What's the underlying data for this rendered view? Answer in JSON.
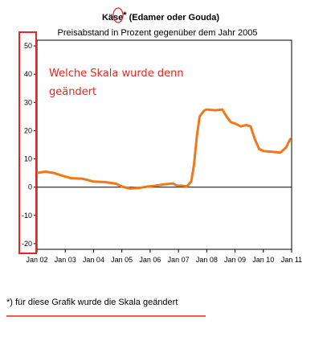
{
  "chart_data": {
    "type": "line",
    "title": "Käse (Edamer oder Gouda)",
    "title_marker": "*",
    "subtitle": "Preisabstand in Prozent gegenüber dem Jahr 2005",
    "x_ticks": [
      "Jan 02",
      "Jan 03",
      "Jan 04",
      "Jan 05",
      "Jan 06",
      "Jan 07",
      "Jan 08",
      "Jan 09",
      "Jan 10",
      "Jan 11"
    ],
    "xlim": [
      2002.0,
      2011.0
    ],
    "ylim": [
      -22,
      52
    ],
    "y_ticks": [
      -20,
      -10,
      0,
      10,
      20,
      30,
      40,
      50
    ],
    "grid": false,
    "series": [
      {
        "color": "#f07819",
        "points": [
          [
            2002.0,
            5.0
          ],
          [
            2002.3,
            5.5
          ],
          [
            2002.6,
            5.0
          ],
          [
            2002.9,
            4.0
          ],
          [
            2003.2,
            3.2
          ],
          [
            2003.6,
            3.0
          ],
          [
            2004.0,
            2.0
          ],
          [
            2004.4,
            1.8
          ],
          [
            2004.8,
            1.2
          ],
          [
            2005.0,
            0.2
          ],
          [
            2005.3,
            -0.5
          ],
          [
            2005.6,
            -0.3
          ],
          [
            2005.9,
            0.2
          ],
          [
            2006.2,
            0.5
          ],
          [
            2006.5,
            1.0
          ],
          [
            2006.8,
            1.3
          ],
          [
            2006.95,
            0.5
          ],
          [
            2007.1,
            0.5
          ],
          [
            2007.3,
            0.3
          ],
          [
            2007.45,
            2.0
          ],
          [
            2007.55,
            8.0
          ],
          [
            2007.65,
            18.0
          ],
          [
            2007.75,
            25.0
          ],
          [
            2007.9,
            27.0
          ],
          [
            2008.0,
            27.5
          ],
          [
            2008.3,
            27.2
          ],
          [
            2008.55,
            27.5
          ],
          [
            2008.7,
            25.0
          ],
          [
            2008.85,
            23.0
          ],
          [
            2009.0,
            22.5
          ],
          [
            2009.2,
            21.5
          ],
          [
            2009.4,
            22.0
          ],
          [
            2009.55,
            21.5
          ],
          [
            2009.7,
            17.0
          ],
          [
            2009.85,
            13.5
          ],
          [
            2010.0,
            12.8
          ],
          [
            2010.3,
            12.5
          ],
          [
            2010.6,
            12.2
          ],
          [
            2010.8,
            14.0
          ],
          [
            2010.95,
            17.0
          ]
        ]
      }
    ],
    "zero_line": 0
  },
  "annotation": {
    "line1": "Welche Skala wurde denn",
    "line2": "geändert",
    "color": "#e8251e"
  },
  "footnote": "*) für diese Grafik wurde die Skala geändert"
}
